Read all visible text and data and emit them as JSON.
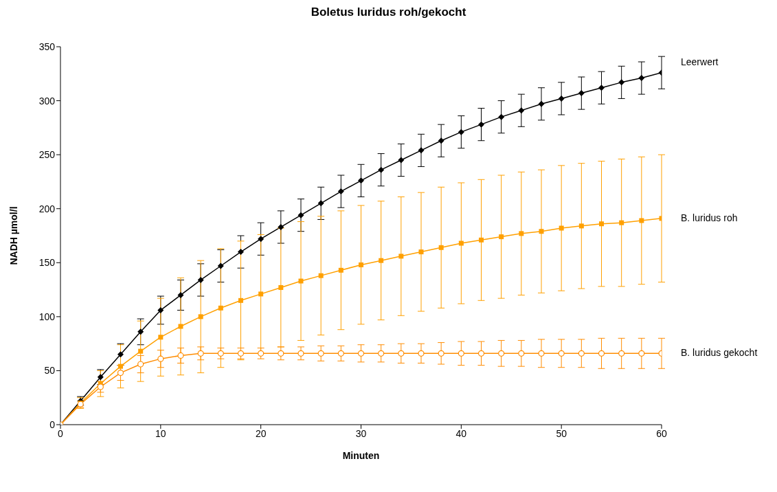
{
  "chart_data": {
    "type": "line",
    "title": "Boletus luridus roh/gekocht",
    "xlabel": "Minuten",
    "ylabel": "NADH µmol/l",
    "x": [
      0,
      2,
      4,
      6,
      8,
      10,
      12,
      14,
      16,
      18,
      20,
      22,
      24,
      26,
      28,
      30,
      32,
      34,
      36,
      38,
      40,
      42,
      44,
      46,
      48,
      50,
      52,
      54,
      56,
      58,
      60
    ],
    "xlim": [
      0,
      60
    ],
    "xticks": [
      0,
      10,
      20,
      30,
      40,
      50,
      60
    ],
    "ylim": [
      0,
      350
    ],
    "yticks": [
      0,
      50,
      100,
      150,
      200,
      250,
      300,
      350
    ],
    "grid": false,
    "line_style": "solid",
    "series": [
      {
        "name": "Leerwert",
        "color": "#000000",
        "marker": "diamond",
        "values": [
          0,
          22,
          44,
          65,
          86,
          106,
          120,
          134,
          147,
          160,
          172,
          183,
          194,
          205,
          216,
          226,
          236,
          245,
          254,
          263,
          271,
          278,
          285,
          291,
          297,
          302,
          307,
          312,
          317,
          321,
          326
        ],
        "errors": [
          0,
          4,
          7,
          10,
          12,
          13,
          14,
          15,
          15,
          15,
          15,
          15,
          15,
          15,
          15,
          15,
          15,
          15,
          15,
          15,
          15,
          15,
          15,
          15,
          15,
          15,
          15,
          15,
          15,
          15,
          15
        ]
      },
      {
        "name": "B. luridus roh",
        "color": "#ffa000",
        "marker": "square",
        "values": [
          0,
          20,
          38,
          54,
          68,
          81,
          91,
          100,
          108,
          115,
          121,
          127,
          133,
          138,
          143,
          148,
          152,
          156,
          160,
          164,
          168,
          171,
          174,
          177,
          179,
          182,
          184,
          186,
          187,
          189,
          191
        ],
        "errors": [
          0,
          5,
          12,
          20,
          28,
          36,
          45,
          52,
          55,
          55,
          55,
          55,
          55,
          55,
          55,
          55,
          55,
          55,
          55,
          56,
          56,
          56,
          57,
          57,
          57,
          58,
          58,
          58,
          59,
          59,
          59
        ]
      },
      {
        "name": "B. luridus gekocht",
        "color": "#ff8c00",
        "marker": "circle",
        "values": [
          0,
          19,
          35,
          48,
          56,
          61,
          64,
          66,
          66,
          66,
          66,
          66,
          66,
          66,
          66,
          66,
          66,
          66,
          66,
          66,
          66,
          66,
          66,
          66,
          66,
          66,
          66,
          66,
          66,
          66,
          66
        ],
        "errors": [
          0,
          3,
          5,
          7,
          8,
          8,
          7,
          6,
          5,
          5,
          5,
          6,
          6,
          7,
          7,
          8,
          8,
          9,
          9,
          10,
          11,
          11,
          12,
          12,
          13,
          13,
          13,
          14,
          14,
          14,
          14
        ]
      }
    ]
  }
}
